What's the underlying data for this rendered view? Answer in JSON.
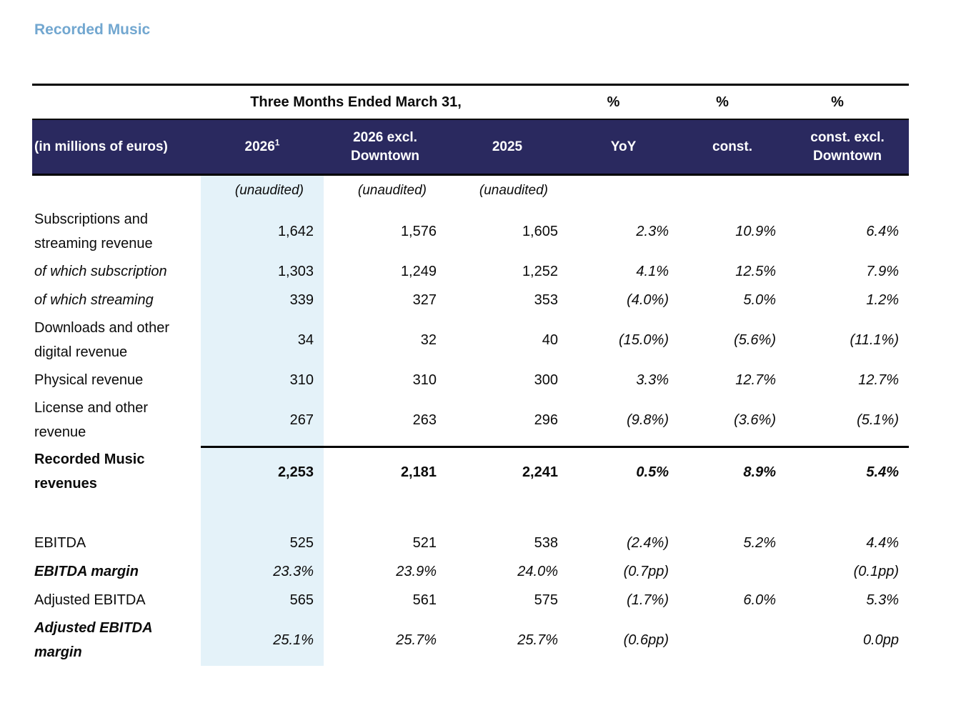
{
  "title": "Recorded Music",
  "colors": {
    "title_blue": "#72a7d0",
    "header_navy": "#2a295f",
    "highlight_column": "#e4f2f9"
  },
  "table": {
    "period_header": "Three Months Ended March 31,",
    "pct_headers": [
      "%",
      "%",
      "%"
    ],
    "row_label_header": "(in millions of euros)",
    "column_headers": [
      {
        "label": "2026",
        "superscript": "1"
      },
      {
        "label": "2026 excl. Downtown"
      },
      {
        "label": "2025"
      },
      {
        "label": "YoY"
      },
      {
        "label": "const."
      },
      {
        "label": "const. excl. Downtown"
      }
    ],
    "unaudited_labels": [
      "(unaudited)",
      "(unaudited)",
      "(unaudited)"
    ],
    "rows": [
      {
        "label": "Subscriptions and streaming revenue",
        "values": [
          "1,642",
          "1,576",
          "1,605",
          "2.3%",
          "10.9%",
          "6.4%"
        ],
        "label_style": "regular",
        "value_style": "regular"
      },
      {
        "label": "of which subscription",
        "values": [
          "1,303",
          "1,249",
          "1,252",
          "4.1%",
          "12.5%",
          "7.9%"
        ],
        "label_style": "italic",
        "value_style": "regular"
      },
      {
        "label": "of which streaming",
        "values": [
          "339",
          "327",
          "353",
          "(4.0%)",
          "5.0%",
          "1.2%"
        ],
        "label_style": "italic",
        "value_style": "regular"
      },
      {
        "label": "Downloads and other digital revenue",
        "values": [
          "34",
          "32",
          "40",
          "(15.0%)",
          "(5.6%)",
          "(11.1%)"
        ],
        "label_style": "regular",
        "value_style": "regular"
      },
      {
        "label": "Physical revenue",
        "values": [
          "310",
          "310",
          "300",
          "3.3%",
          "12.7%",
          "12.7%"
        ],
        "label_style": "regular",
        "value_style": "regular"
      },
      {
        "label": "License and other revenue",
        "values": [
          "267",
          "263",
          "296",
          "(9.8%)",
          "(3.6%)",
          "(5.1%)"
        ],
        "label_style": "regular",
        "value_style": "regular"
      },
      {
        "label": "Recorded Music revenues",
        "values": [
          "2,253",
          "2,181",
          "2,241",
          "0.5%",
          "8.9%",
          "5.4%"
        ],
        "label_style": "bold",
        "value_style": "bold",
        "rule_above": true
      },
      {
        "type": "spacer"
      },
      {
        "label": "EBITDA",
        "values": [
          "525",
          "521",
          "538",
          "(2.4%)",
          "5.2%",
          "4.4%"
        ],
        "label_style": "regular",
        "value_style": "regular"
      },
      {
        "label": "EBITDA margin",
        "values": [
          "23.3%",
          "23.9%",
          "24.0%",
          "(0.7pp)",
          "",
          "(0.1pp)"
        ],
        "label_style": "bolditalic",
        "value_style": "italic"
      },
      {
        "label": "Adjusted EBITDA",
        "values": [
          "565",
          "561",
          "575",
          "(1.7%)",
          "6.0%",
          "5.3%"
        ],
        "label_style": "regular",
        "value_style": "regular"
      },
      {
        "label": "Adjusted EBITDA margin",
        "values": [
          "25.1%",
          "25.7%",
          "25.7%",
          "(0.6pp)",
          "",
          "0.0pp"
        ],
        "label_style": "bolditalic",
        "value_style": "italic"
      }
    ]
  }
}
